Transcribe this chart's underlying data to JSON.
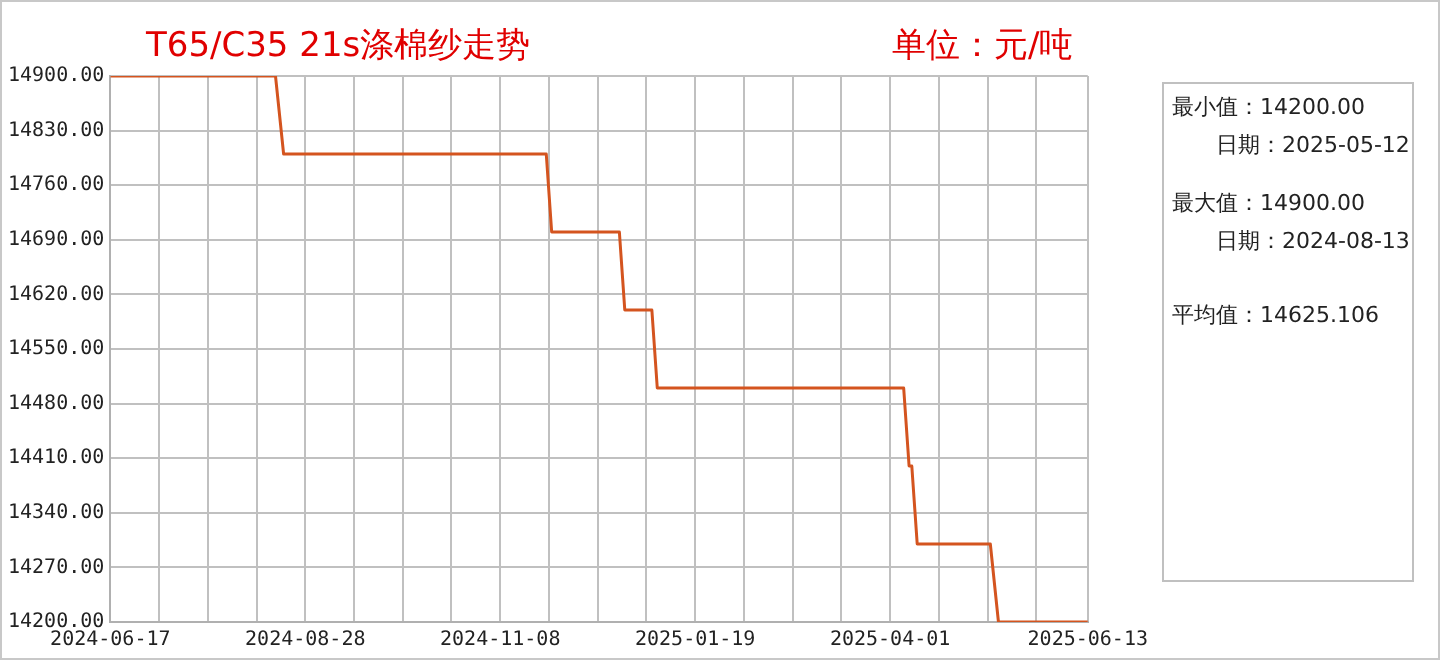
{
  "chart_data": {
    "type": "line",
    "title": "T65/C35 21s涤棉纱走势",
    "subtitle": "单位：元/吨",
    "annotations": [
      "最小值：14200.00",
      "日期：2025-05-12",
      "最大值：14900.00",
      "日期：2024-08-13",
      "平均值：14625.106"
    ],
    "x": [
      "2024-06-17",
      "2024-08-17",
      "2024-08-20",
      "2024-11-25",
      "2024-11-27",
      "2024-12-22",
      "2024-12-24",
      "2025-01-03",
      "2025-01-05",
      "2025-04-06",
      "2025-04-08",
      "2025-04-09",
      "2025-04-11",
      "2025-05-08",
      "2025-05-11",
      "2025-06-13"
    ],
    "series": [
      {
        "color": "#d4541f",
        "values": [
          14900,
          14900,
          14800,
          14800,
          14700,
          14700,
          14600,
          14600,
          14500,
          14500,
          14400,
          14400,
          14300,
          14300,
          14200,
          14200
        ]
      }
    ],
    "xlim": [
      "2024-06-17",
      "2025-06-13"
    ],
    "xticks": [
      {
        "value": "2024-06-17",
        "label": "2024-06-17"
      },
      {
        "value": "2024-07-05",
        "label": null
      },
      {
        "value": "2024-07-23",
        "label": null
      },
      {
        "value": "2024-08-10",
        "label": null
      },
      {
        "value": "2024-08-28",
        "label": "2024-08-28"
      },
      {
        "value": "2024-09-15",
        "label": null
      },
      {
        "value": "2024-10-03",
        "label": null
      },
      {
        "value": "2024-10-21",
        "label": null
      },
      {
        "value": "2024-11-08",
        "label": "2024-11-08"
      },
      {
        "value": "2024-11-26",
        "label": null
      },
      {
        "value": "2024-12-14",
        "label": null
      },
      {
        "value": "2025-01-01",
        "label": null
      },
      {
        "value": "2025-01-19",
        "label": "2025-01-19"
      },
      {
        "value": "2025-02-06",
        "label": null
      },
      {
        "value": "2025-02-24",
        "label": null
      },
      {
        "value": "2025-03-14",
        "label": null
      },
      {
        "value": "2025-04-01",
        "label": "2025-04-01"
      },
      {
        "value": "2025-04-19",
        "label": null
      },
      {
        "value": "2025-05-07",
        "label": null
      },
      {
        "value": "2025-05-25",
        "label": null
      },
      {
        "value": "2025-06-13",
        "label": "2025-06-13"
      }
    ],
    "ylim": [
      14200,
      14900
    ],
    "yticks": [
      {
        "value": 14200,
        "label": "14200.00"
      },
      {
        "value": 14270,
        "label": "14270.00"
      },
      {
        "value": 14340,
        "label": "14340.00"
      },
      {
        "value": 14410,
        "label": "14410.00"
      },
      {
        "value": 14480,
        "label": "14480.00"
      },
      {
        "value": 14550,
        "label": "14550.00"
      },
      {
        "value": 14620,
        "label": "14620.00"
      },
      {
        "value": 14690,
        "label": "14690.00"
      },
      {
        "value": 14760,
        "label": "14760.00"
      },
      {
        "value": 14830,
        "label": "14830.00"
      },
      {
        "value": 14900,
        "label": "14900.00"
      }
    ],
    "grid": true,
    "marker": "none",
    "line_style": "solid"
  }
}
